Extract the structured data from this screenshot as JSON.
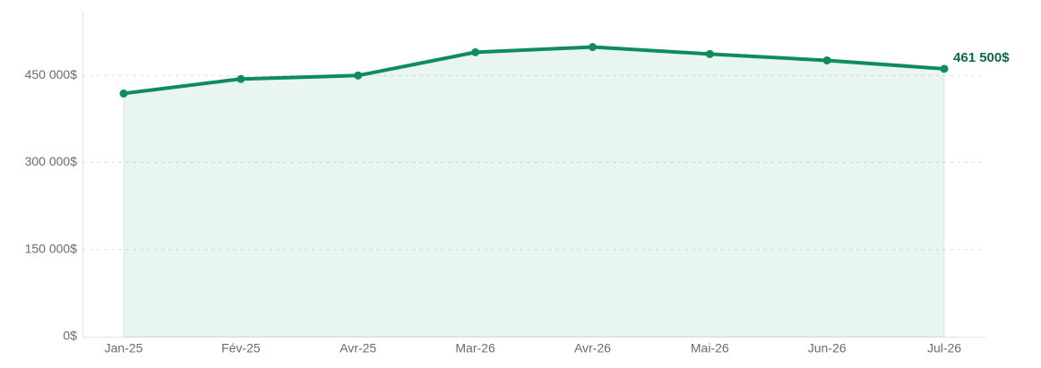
{
  "chart_data": {
    "type": "line",
    "categories": [
      "Jan-25",
      "Fév-25",
      "Avr-25",
      "Mar-26",
      "Avr-26",
      "Mai-26",
      "Jun-26",
      "Jul-26"
    ],
    "values": [
      419000,
      444000,
      450000,
      490000,
      499000,
      487000,
      476000,
      461500
    ],
    "value_labels": [
      null,
      null,
      null,
      null,
      null,
      null,
      null,
      "461 500$"
    ],
    "color": "#0e8c5a",
    "area": true,
    "ylim": [
      0,
      560000
    ],
    "yticks": [
      {
        "value": 0,
        "label": "0$"
      },
      {
        "value": 150000,
        "label": "150 000$"
      },
      {
        "value": 300000,
        "label": "300 000$"
      },
      {
        "value": 450000,
        "label": "450 000$"
      }
    ],
    "grid": true
  }
}
